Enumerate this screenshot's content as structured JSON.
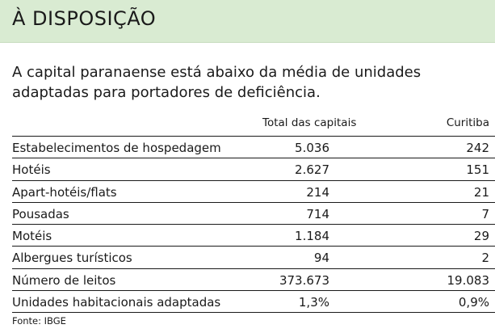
{
  "header": {
    "title": "À DISPOSIÇÃO"
  },
  "lede": {
    "text": "A capital paranaense está abaixo da média de unidades adaptadas para portadores de deficiência."
  },
  "table": {
    "columns": {
      "total": "Total das capitais",
      "curitiba": "Curitiba"
    },
    "rows": [
      {
        "label": "Estabelecimentos de hospedagem",
        "total": "5.036",
        "curitiba": "242"
      },
      {
        "label": "Hotéis",
        "total": "2.627",
        "curitiba": "151"
      },
      {
        "label": "Apart-hotéis/flats",
        "total": "214",
        "curitiba": "21"
      },
      {
        "label": "Pousadas",
        "total": "714",
        "curitiba": "7"
      },
      {
        "label": "Motéis",
        "total": "1.184",
        "curitiba": "29"
      },
      {
        "label": "Albergues turísticos",
        "total": "94",
        "curitiba": "2"
      },
      {
        "label": "Número de leitos",
        "total": "373.673",
        "curitiba": "19.083"
      },
      {
        "label": "Unidades habitacionais adaptadas",
        "total": "1,3%",
        "curitiba": "0,9%"
      }
    ]
  },
  "source": {
    "text": "Fonte: IBGE"
  }
}
